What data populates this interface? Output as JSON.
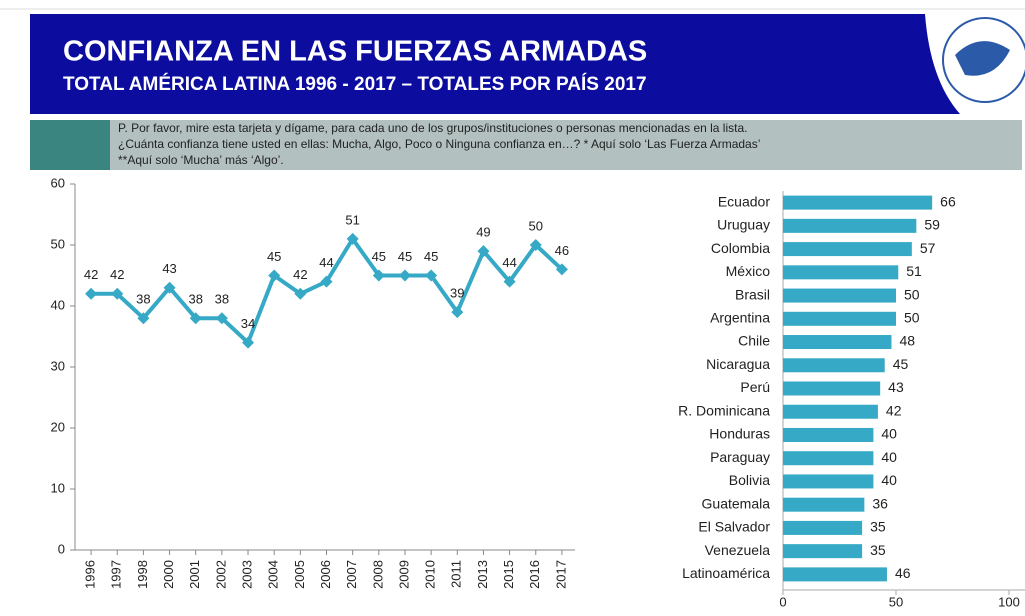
{
  "header": {
    "title": "CONFIANZA EN LAS FUERZAS ARMADAS",
    "subtitle": "TOTAL AMÉRICA LATINA 1996 - 2017  –  TOTALES POR PAÍS 2017"
  },
  "question": [
    "P. Por favor, mire esta tarjeta y dígame, para cada uno de los grupos/instituciones o personas mencionadas en la lista.",
    "¿Cuánta confianza tiene usted en ellas: Mucha, Algo, Poco o Ninguna confianza en…? * Aquí solo ‘Las Fuerza Armadas’",
    "**Aquí solo ‘Mucha’ más ‘Algo’."
  ],
  "chart_data": [
    {
      "type": "line",
      "color": "#35a9c5",
      "categories": [
        "1996",
        "1997",
        "1998",
        "2000",
        "2001",
        "2002",
        "2003",
        "2004",
        "2005",
        "2006",
        "2007",
        "2008",
        "2009",
        "2010",
        "2011",
        "2013",
        "2015",
        "2016",
        "2017"
      ],
      "values": [
        42,
        42,
        38,
        43,
        38,
        38,
        34,
        45,
        42,
        44,
        51,
        45,
        45,
        45,
        39,
        49,
        44,
        50,
        46
      ],
      "ylim": [
        0,
        60
      ],
      "yticks": [
        0,
        10,
        20,
        30,
        40,
        50,
        60
      ],
      "grid": false
    },
    {
      "type": "hbar",
      "color": "#35a9c5",
      "categories": [
        "Ecuador",
        "Uruguay",
        "Colombia",
        "México",
        "Brasil",
        "Argentina",
        "Chile",
        "Nicaragua",
        "Perú",
        "R. Dominicana",
        "Honduras",
        "Paraguay",
        "Bolivia",
        "Guatemala",
        "El Salvador",
        "Venezuela",
        "Latinoamérica"
      ],
      "values": [
        66,
        59,
        57,
        51,
        50,
        50,
        48,
        45,
        43,
        42,
        40,
        40,
        40,
        36,
        35,
        35,
        46
      ],
      "xlim": [
        0,
        100
      ],
      "xticks": [
        0,
        50,
        100
      ],
      "grid": false
    }
  ]
}
